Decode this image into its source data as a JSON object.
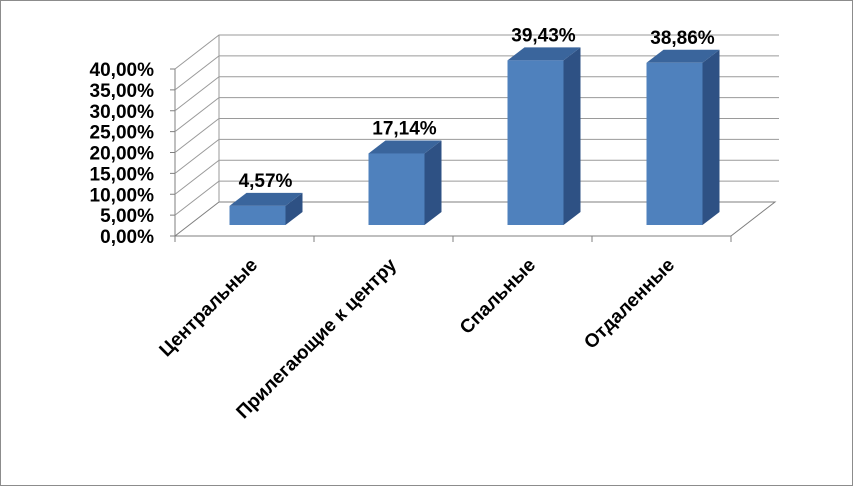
{
  "chart_data": {
    "type": "bar",
    "three_d": true,
    "categories": [
      "Центральные",
      "Прилегающие к центру",
      "Спальные",
      "Отдаленные"
    ],
    "values": [
      4.57,
      17.14,
      39.43,
      38.86
    ],
    "data_labels": [
      "4,57%",
      "17,14%",
      "39,43%",
      "38,86%"
    ],
    "yticks": [
      "0,00%",
      "5,00%",
      "10,00%",
      "15,00%",
      "20,00%",
      "25,00%",
      "30,00%",
      "35,00%",
      "40,00%"
    ],
    "ylim": [
      0,
      40
    ],
    "grid": true,
    "legend": "none",
    "title": "",
    "xlabel": "",
    "ylabel": "",
    "colors": {
      "bar_front": "#4f81bd",
      "bar_side": "#2e5184",
      "bar_top": "#3a659c",
      "grid": "#9a9a9a",
      "axis": "#7f7f7f"
    }
  }
}
